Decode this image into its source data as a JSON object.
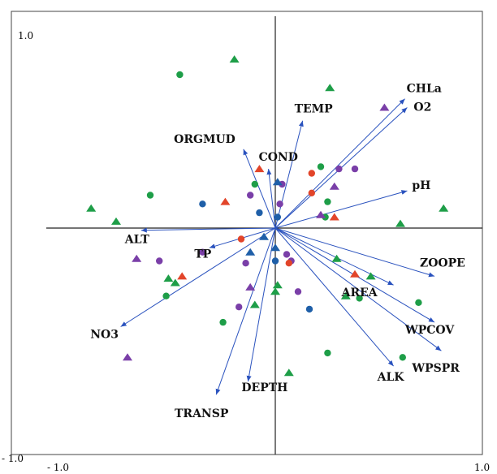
{
  "chart_data": {
    "type": "scatter",
    "subtype": "ordination-biplot",
    "title": "",
    "xlabel": "",
    "ylabel": "",
    "xlim": [
      -1.0,
      1.0
    ],
    "ylim": [
      -1.0,
      1.0
    ],
    "grid": false,
    "legend": "none",
    "tick_labels": {
      "y_top": "1.0",
      "y_bottom": "- 1.0",
      "x_left": "- 1.0",
      "x_right": "1.0"
    },
    "arrow_color": "#2a52be",
    "vectors": [
      {
        "name": "CHLa",
        "x": 0.57,
        "y": 0.59
      },
      {
        "name": "O2",
        "x": 0.58,
        "y": 0.55
      },
      {
        "name": "TEMP",
        "x": 0.12,
        "y": 0.49
      },
      {
        "name": "ORGMUD",
        "x": -0.14,
        "y": 0.36
      },
      {
        "name": "COND",
        "x": -0.03,
        "y": 0.27
      },
      {
        "name": "pH",
        "x": 0.58,
        "y": 0.17
      },
      {
        "name": "ALT",
        "x": -0.59,
        "y": -0.01
      },
      {
        "name": "TP",
        "x": -0.29,
        "y": -0.09
      },
      {
        "name": "NO3",
        "x": -0.68,
        "y": -0.45
      },
      {
        "name": "TRANSP",
        "x": -0.26,
        "y": -0.76
      },
      {
        "name": "DEPTH",
        "x": -0.12,
        "y": -0.7
      },
      {
        "name": "ALK",
        "x": 0.52,
        "y": -0.63
      },
      {
        "name": "WPSPR",
        "x": 0.73,
        "y": -0.56
      },
      {
        "name": "WPCOV",
        "x": 0.7,
        "y": -0.43
      },
      {
        "name": "AREA",
        "x": 0.52,
        "y": -0.26
      },
      {
        "name": "ZOOPE",
        "x": 0.7,
        "y": -0.22
      }
    ],
    "series": [
      {
        "marker": "triangle",
        "color": "#1e9e48",
        "points": [
          [
            -0.18,
            0.77
          ],
          [
            0.24,
            0.64
          ],
          [
            -0.81,
            0.09
          ],
          [
            -0.7,
            0.03
          ],
          [
            0.55,
            0.02
          ],
          [
            0.74,
            0.09
          ],
          [
            0.27,
            -0.14
          ],
          [
            0.42,
            -0.22
          ],
          [
            0.0,
            -0.29
          ],
          [
            -0.44,
            -0.25
          ],
          [
            -0.47,
            -0.23
          ],
          [
            0.31,
            -0.31
          ],
          [
            0.01,
            -0.26
          ],
          [
            -0.09,
            -0.35
          ],
          [
            0.06,
            -0.66
          ]
        ]
      },
      {
        "marker": "circle",
        "color": "#1e9e48",
        "points": [
          [
            -0.42,
            0.7
          ],
          [
            -0.55,
            0.15
          ],
          [
            0.2,
            0.28
          ],
          [
            0.23,
            0.12
          ],
          [
            0.22,
            0.05
          ],
          [
            -0.09,
            0.2
          ],
          [
            -0.48,
            -0.31
          ],
          [
            0.37,
            -0.32
          ],
          [
            0.63,
            -0.34
          ],
          [
            -0.23,
            -0.43
          ],
          [
            0.23,
            -0.57
          ],
          [
            0.56,
            -0.59
          ]
        ]
      },
      {
        "marker": "triangle",
        "color": "#7a3fa8",
        "points": [
          [
            0.48,
            0.55
          ],
          [
            0.26,
            0.19
          ],
          [
            0.2,
            0.06
          ],
          [
            -0.61,
            -0.14
          ],
          [
            -0.11,
            -0.27
          ],
          [
            -0.65,
            -0.59
          ]
        ]
      },
      {
        "marker": "circle",
        "color": "#7a3fa8",
        "points": [
          [
            0.28,
            0.27
          ],
          [
            0.35,
            0.27
          ],
          [
            0.03,
            0.2
          ],
          [
            -0.11,
            0.15
          ],
          [
            0.02,
            0.11
          ],
          [
            -0.51,
            -0.15
          ],
          [
            -0.32,
            -0.11
          ],
          [
            0.05,
            -0.12
          ],
          [
            -0.13,
            -0.16
          ],
          [
            0.07,
            -0.15
          ],
          [
            -0.16,
            -0.36
          ],
          [
            0.1,
            -0.29
          ]
        ]
      },
      {
        "marker": "triangle",
        "color": "#e2452a",
        "points": [
          [
            -0.07,
            0.27
          ],
          [
            -0.22,
            0.12
          ],
          [
            0.26,
            0.05
          ],
          [
            -0.41,
            -0.22
          ],
          [
            0.35,
            -0.21
          ]
        ]
      },
      {
        "marker": "circle",
        "color": "#e2452a",
        "points": [
          [
            0.16,
            0.25
          ],
          [
            0.16,
            0.16
          ],
          [
            -0.15,
            -0.05
          ],
          [
            0.06,
            -0.16
          ]
        ]
      },
      {
        "marker": "triangle",
        "color": "#1f5fa8",
        "points": [
          [
            0.01,
            0.21
          ],
          [
            -0.11,
            -0.11
          ],
          [
            -0.05,
            -0.04
          ],
          [
            0.0,
            -0.09
          ]
        ]
      },
      {
        "marker": "circle",
        "color": "#1f5fa8",
        "points": [
          [
            -0.32,
            0.11
          ],
          [
            -0.07,
            0.07
          ],
          [
            0.01,
            0.05
          ],
          [
            0.0,
            -0.15
          ],
          [
            0.15,
            -0.37
          ]
        ]
      }
    ]
  }
}
